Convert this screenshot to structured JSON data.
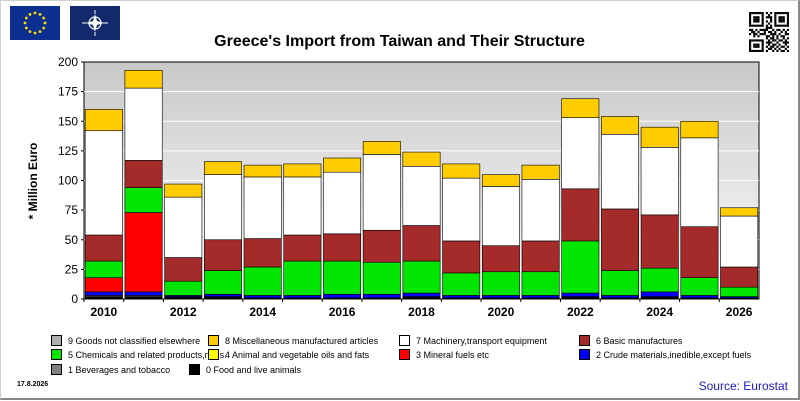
{
  "colors": {
    "c9": "#b0b0b0",
    "c8": "#ffcc00",
    "c7": "#ffffff",
    "c6": "#a52a2a",
    "c5": "#00e600",
    "c4": "#ffff00",
    "c3": "#ff0000",
    "c2": "#0000ff",
    "c1": "#808080",
    "c0": "#000000"
  },
  "icons": {
    "flag_left": "eu-flag-icon",
    "flag_right": "nato-flag-icon",
    "qr": "qr-code-icon"
  },
  "chart_data": {
    "type": "bar",
    "stacked": true,
    "title": "Greece's Import from Taiwan and Their Structure",
    "ylabel": "* Million Euro",
    "xlabel": "",
    "ylim": [
      0,
      200
    ],
    "yticks": [
      0,
      25,
      50,
      75,
      100,
      125,
      150,
      175,
      200
    ],
    "xtick_labels": [
      "2010",
      "2012",
      "2014",
      "2016",
      "2018",
      "2020",
      "2022",
      "2024",
      "2026"
    ],
    "grid": true,
    "legend_position": "bottom",
    "categories": [
      "2010",
      "2011",
      "2012",
      "2013",
      "2014",
      "2015",
      "2016",
      "2017",
      "2018",
      "2019",
      "2020",
      "2021",
      "2022",
      "2023",
      "2024",
      "2025",
      "2026"
    ],
    "series": [
      {
        "name": "0 Food and live animals",
        "color": "#000000",
        "values": [
          2,
          2,
          2,
          2,
          1,
          1,
          1,
          1,
          2,
          1,
          1,
          1,
          2,
          1,
          2,
          1,
          1
        ]
      },
      {
        "name": "1 Beverages and tobacco",
        "color": "#808080",
        "values": [
          1,
          1,
          0,
          0,
          0,
          0,
          0,
          0,
          0,
          0,
          0,
          0,
          0,
          0,
          0,
          0,
          0
        ]
      },
      {
        "name": "2 Crude materials,inedible,except fuels",
        "color": "#0000ff",
        "values": [
          3,
          3,
          1,
          2,
          2,
          2,
          3,
          3,
          3,
          2,
          2,
          2,
          3,
          2,
          4,
          2,
          1
        ]
      },
      {
        "name": "3 Mineral fuels etc",
        "color": "#ff0000",
        "values": [
          12,
          67,
          0,
          0,
          0,
          0,
          0,
          0,
          0,
          0,
          0,
          0,
          0,
          0,
          0,
          0,
          0
        ]
      },
      {
        "name": "4 Animal and vegetable oils and fats",
        "color": "#ffff00",
        "values": [
          0,
          0,
          0,
          0,
          0,
          0,
          0,
          0,
          0,
          0,
          0,
          0,
          0,
          0,
          0,
          0,
          0
        ]
      },
      {
        "name": "5 Chemicals and related products,n.e.s.",
        "color": "#00e600",
        "values": [
          14,
          21,
          12,
          20,
          24,
          29,
          28,
          27,
          27,
          19,
          20,
          20,
          44,
          21,
          20,
          15,
          8
        ]
      },
      {
        "name": "6 Basic manufactures",
        "color": "#a52a2a",
        "values": [
          22,
          23,
          20,
          26,
          24,
          22,
          23,
          27,
          30,
          27,
          22,
          26,
          44,
          52,
          45,
          43,
          17
        ]
      },
      {
        "name": "7 Machinery,transport equipment",
        "color": "#ffffff",
        "values": [
          88,
          61,
          51,
          55,
          52,
          49,
          52,
          64,
          50,
          53,
          50,
          52,
          60,
          63,
          57,
          75,
          43
        ]
      },
      {
        "name": "8 Miscellaneous manufactured articles",
        "color": "#ffcc00",
        "values": [
          18,
          15,
          11,
          11,
          10,
          11,
          12,
          11,
          12,
          12,
          10,
          12,
          16,
          15,
          17,
          14,
          7
        ]
      },
      {
        "name": "9 Goods not classified elsewhere",
        "color": "#b0b0b0",
        "values": [
          0,
          0,
          0,
          0,
          0,
          0,
          0,
          0,
          0,
          0,
          0,
          0,
          0,
          0,
          0,
          0,
          0
        ]
      }
    ]
  },
  "legend": {
    "row1": [
      "9 Goods not classified elsewhere",
      "8 Miscellaneous manufactured articles",
      "7 Machinery,transport equipment",
      "6 Basic manufactures"
    ],
    "row2": [
      "5 Chemicals and related products,n.e.s.",
      "4 Animal and vegetable oils and fats",
      "3 Mineral fuels etc",
      "2 Crude materials,inedible,except fuels"
    ],
    "row3": [
      "1 Beverages and tobacco",
      "0 Food and live animals"
    ]
  },
  "footer": {
    "date": "17.8.2026",
    "source": "Source: Eurostat"
  }
}
